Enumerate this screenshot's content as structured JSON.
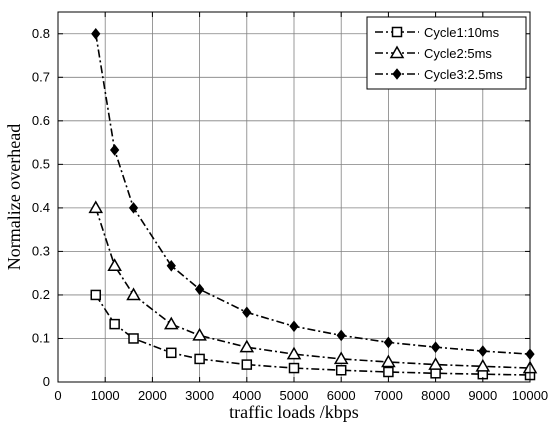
{
  "chart_data": {
    "type": "line",
    "title": "",
    "xlabel": "traffic loads /kbps",
    "ylabel": "Normalize overhead",
    "xlim": [
      0,
      10000
    ],
    "ylim": [
      0,
      0.85
    ],
    "xticks": [
      0,
      1000,
      2000,
      3000,
      4000,
      5000,
      6000,
      7000,
      8000,
      9000,
      10000
    ],
    "xtick_labels": [
      "0",
      "1000",
      "2000",
      "3000",
      "4000",
      "5000",
      "6000",
      "7000",
      "8000",
      "9000",
      "10000"
    ],
    "yticks": [
      0,
      0.1,
      0.2,
      0.3,
      0.4,
      0.5,
      0.6,
      0.7,
      0.8
    ],
    "ytick_labels": [
      "0",
      "0.1",
      "0.2",
      "0.3",
      "0.4",
      "0.5",
      "0.6",
      "0.7",
      "0.8"
    ],
    "grid": true,
    "legend_position": "top-right",
    "x": [
      800,
      1200,
      1600,
      2400,
      3000,
      4000,
      5000,
      6000,
      7000,
      8000,
      9000,
      10000
    ],
    "series": [
      {
        "name": "Cycle1:10ms",
        "marker": "square",
        "values": [
          0.2,
          0.133,
          0.1,
          0.067,
          0.053,
          0.04,
          0.032,
          0.027,
          0.023,
          0.02,
          0.018,
          0.016
        ]
      },
      {
        "name": "Cycle2:5ms",
        "marker": "triangle",
        "values": [
          0.4,
          0.267,
          0.2,
          0.133,
          0.107,
          0.08,
          0.064,
          0.053,
          0.046,
          0.04,
          0.036,
          0.032
        ]
      },
      {
        "name": "Cycle3:2.5ms",
        "marker": "diamond",
        "values": [
          0.8,
          0.533,
          0.4,
          0.267,
          0.213,
          0.16,
          0.128,
          0.107,
          0.091,
          0.08,
          0.071,
          0.064
        ]
      }
    ]
  }
}
